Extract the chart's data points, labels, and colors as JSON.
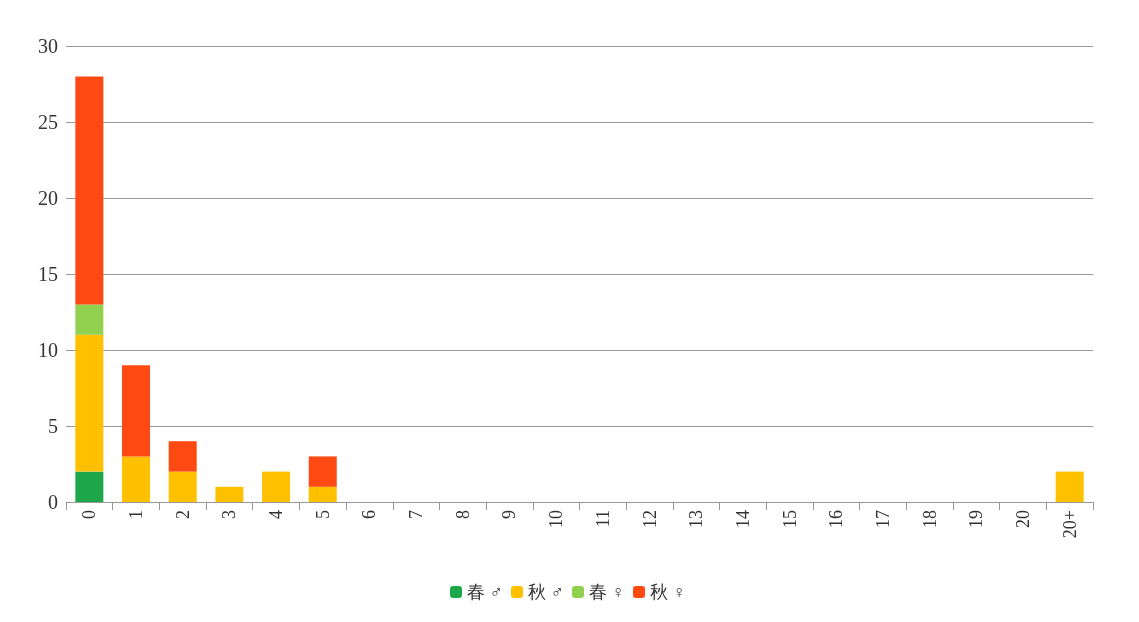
{
  "chart_data": {
    "type": "bar",
    "stacked": true,
    "categories": [
      "0",
      "1",
      "2",
      "3",
      "4",
      "5",
      "6",
      "7",
      "8",
      "9",
      "10",
      "11",
      "12",
      "13",
      "14",
      "15",
      "16",
      "17",
      "18",
      "19",
      "20",
      "20+"
    ],
    "series": [
      {
        "name": "春 ♂",
        "color": "#1ea64b",
        "values": [
          2,
          0,
          0,
          0,
          0,
          0,
          0,
          0,
          0,
          0,
          0,
          0,
          0,
          0,
          0,
          0,
          0,
          0,
          0,
          0,
          0,
          0
        ]
      },
      {
        "name": "秋 ♂",
        "color": "#ffc000",
        "values": [
          9,
          3,
          2,
          1,
          2,
          1,
          0,
          0,
          0,
          0,
          0,
          0,
          0,
          0,
          0,
          0,
          0,
          0,
          0,
          0,
          0,
          2
        ]
      },
      {
        "name": "春 ♀",
        "color": "#92d050",
        "values": [
          2,
          0,
          0,
          0,
          0,
          0,
          0,
          0,
          0,
          0,
          0,
          0,
          0,
          0,
          0,
          0,
          0,
          0,
          0,
          0,
          0,
          0
        ]
      },
      {
        "name": "秋 ♀",
        "color": "#fe4a12",
        "values": [
          15,
          6,
          2,
          0,
          0,
          2,
          0,
          0,
          0,
          0,
          0,
          0,
          0,
          0,
          0,
          0,
          0,
          0,
          0,
          0,
          0,
          0
        ]
      }
    ],
    "ylim": [
      0,
      30
    ],
    "yticks": [
      0,
      5,
      10,
      15,
      20,
      25,
      30
    ],
    "grid": "y",
    "legend": "bottom"
  }
}
